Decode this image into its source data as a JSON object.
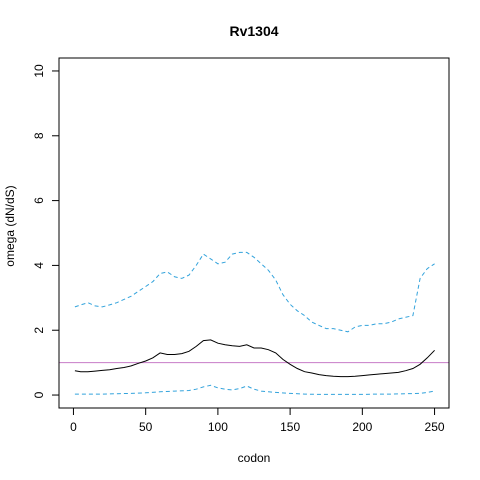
{
  "chart_data": {
    "type": "line",
    "title": "Rv1304",
    "xlabel": "codon",
    "ylabel": "omega (dN/dS)",
    "xlim": [
      -10,
      260
    ],
    "ylim": [
      -0.4,
      10.4
    ],
    "x_ticks": [
      0,
      50,
      100,
      150,
      200,
      250
    ],
    "y_ticks": [
      0,
      2,
      4,
      6,
      8,
      10
    ],
    "grid": false,
    "reference_line": {
      "y": 1,
      "color": "#c77cc7"
    },
    "series": [
      {
        "role": "upper",
        "color": "#33a3dc",
        "dash": "dashed",
        "x": [
          1,
          5,
          10,
          15,
          20,
          25,
          30,
          35,
          40,
          45,
          50,
          55,
          60,
          65,
          70,
          75,
          80,
          85,
          90,
          95,
          100,
          105,
          110,
          115,
          120,
          125,
          130,
          135,
          140,
          145,
          150,
          155,
          160,
          165,
          170,
          175,
          180,
          185,
          190,
          195,
          200,
          205,
          210,
          215,
          220,
          225,
          230,
          235,
          240,
          245,
          250
        ],
        "y": [
          2.72,
          2.78,
          2.85,
          2.75,
          2.72,
          2.78,
          2.85,
          2.95,
          3.05,
          3.2,
          3.35,
          3.5,
          3.75,
          3.8,
          3.65,
          3.6,
          3.7,
          4.0,
          4.35,
          4.2,
          4.05,
          4.1,
          4.35,
          4.4,
          4.4,
          4.25,
          4.05,
          3.85,
          3.55,
          3.1,
          2.8,
          2.6,
          2.45,
          2.25,
          2.15,
          2.05,
          2.05,
          2.0,
          1.95,
          2.1,
          2.15,
          2.15,
          2.2,
          2.2,
          2.25,
          2.35,
          2.4,
          2.45,
          3.6,
          3.9,
          4.05
        ]
      },
      {
        "role": "estimate",
        "color": "#000000",
        "dash": "solid",
        "x": [
          1,
          5,
          10,
          15,
          20,
          25,
          30,
          35,
          40,
          45,
          50,
          55,
          60,
          65,
          70,
          75,
          80,
          85,
          90,
          95,
          100,
          105,
          110,
          115,
          120,
          125,
          130,
          135,
          140,
          145,
          150,
          155,
          160,
          165,
          170,
          175,
          180,
          185,
          190,
          195,
          200,
          205,
          210,
          215,
          220,
          225,
          230,
          235,
          240,
          245,
          250
        ],
        "y": [
          0.75,
          0.72,
          0.72,
          0.74,
          0.76,
          0.78,
          0.82,
          0.85,
          0.9,
          0.98,
          1.05,
          1.15,
          1.3,
          1.25,
          1.25,
          1.28,
          1.35,
          1.5,
          1.68,
          1.7,
          1.6,
          1.55,
          1.52,
          1.5,
          1.55,
          1.45,
          1.45,
          1.4,
          1.3,
          1.1,
          0.95,
          0.82,
          0.72,
          0.68,
          0.63,
          0.6,
          0.58,
          0.57,
          0.57,
          0.58,
          0.6,
          0.62,
          0.64,
          0.66,
          0.68,
          0.7,
          0.75,
          0.82,
          0.95,
          1.15,
          1.38
        ]
      },
      {
        "role": "lower",
        "color": "#33a3dc",
        "dash": "dashed",
        "x": [
          1,
          10,
          20,
          30,
          40,
          50,
          60,
          70,
          80,
          85,
          90,
          95,
          100,
          105,
          110,
          115,
          120,
          125,
          130,
          135,
          140,
          150,
          160,
          170,
          180,
          190,
          200,
          210,
          220,
          230,
          240,
          245,
          250
        ],
        "y": [
          0.03,
          0.03,
          0.03,
          0.04,
          0.05,
          0.07,
          0.1,
          0.12,
          0.14,
          0.18,
          0.25,
          0.3,
          0.22,
          0.18,
          0.16,
          0.2,
          0.28,
          0.18,
          0.12,
          0.1,
          0.08,
          0.05,
          0.03,
          0.02,
          0.02,
          0.02,
          0.02,
          0.03,
          0.03,
          0.04,
          0.05,
          0.08,
          0.12
        ]
      }
    ]
  }
}
